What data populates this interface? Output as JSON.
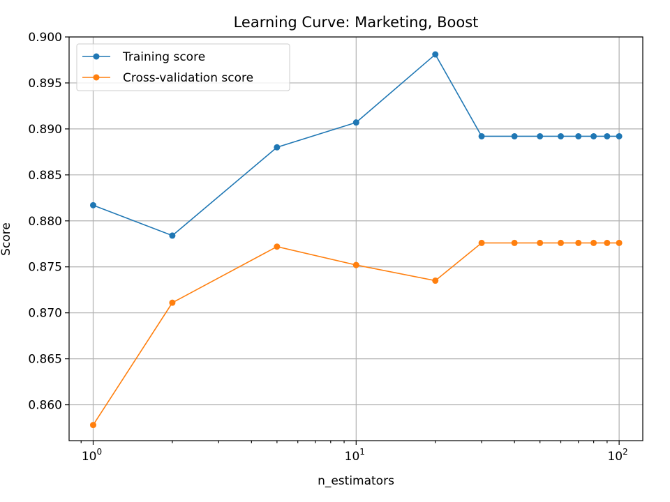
{
  "chart_data": {
    "type": "line",
    "title": "Learning Curve: Marketing, Boost",
    "xlabel": "n_estimators",
    "ylabel": "Score",
    "xscale": "log",
    "xlim": [
      0.81,
      123
    ],
    "ylim": [
      0.8561,
      0.9
    ],
    "grid": true,
    "legend_position": "top-left",
    "x": [
      1,
      2,
      5,
      10,
      20,
      30,
      40,
      50,
      60,
      70,
      80,
      90,
      100
    ],
    "series": [
      {
        "name": "Training score",
        "color": "#1f77b4",
        "values": [
          0.8817,
          0.8784,
          0.888,
          0.8907,
          0.8981,
          0.8892,
          0.8892,
          0.8892,
          0.8892,
          0.8892,
          0.8892,
          0.8892,
          0.8892
        ]
      },
      {
        "name": "Cross-validation score",
        "color": "#ff7f0e",
        "values": [
          0.8578,
          0.8711,
          0.8772,
          0.8752,
          0.8735,
          0.8776,
          0.8776,
          0.8776,
          0.8776,
          0.8776,
          0.8776,
          0.8776,
          0.8776
        ]
      }
    ],
    "y_ticks": [
      "0.860",
      "0.865",
      "0.870",
      "0.875",
      "0.880",
      "0.885",
      "0.890",
      "0.895",
      "0.900"
    ],
    "x_ticks": [
      {
        "base": "10",
        "exp": "0"
      },
      {
        "base": "10",
        "exp": "1"
      },
      {
        "base": "10",
        "exp": "2"
      }
    ]
  }
}
